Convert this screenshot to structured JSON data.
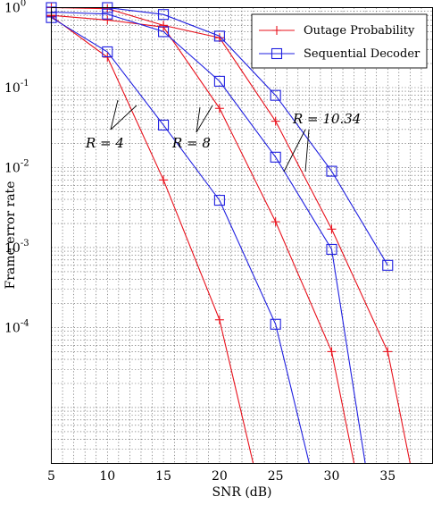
{
  "chart_data": {
    "type": "line",
    "xlabel": "SNR (dB)",
    "ylabel": "Frame error rate",
    "xlim": [
      5,
      39
    ],
    "ylim": [
      2e-06,
      1
    ],
    "yscale": "log",
    "grid": true,
    "legend_position": "top-right",
    "x_ticks": [
      5,
      10,
      15,
      20,
      25,
      30,
      35
    ],
    "y_ticks": [
      {
        "value": 1,
        "base": "10",
        "exp": "0"
      },
      {
        "value": 0.1,
        "base": "10",
        "exp": "-1"
      },
      {
        "value": 0.01,
        "base": "10",
        "exp": "-2"
      },
      {
        "value": 0.001,
        "base": "10",
        "exp": "-3"
      },
      {
        "value": 0.0001,
        "base": "10",
        "exp": "-4"
      }
    ],
    "legend": [
      {
        "label": "Outage Probability",
        "color": "#e8101b",
        "marker": "plus"
      },
      {
        "label": "Sequential Decoder",
        "color": "#1f1fe0",
        "marker": "square"
      }
    ],
    "series": [
      {
        "name": "Outage Probability",
        "group": "R=4",
        "color": "#e8101b",
        "marker": "plus",
        "x": [
          5,
          10,
          15,
          20,
          23
        ],
        "y": [
          0.78,
          0.24,
          0.007,
          0.000125,
          2e-06
        ]
      },
      {
        "name": "Outage Probability",
        "group": "R=8",
        "color": "#e8101b",
        "marker": "plus",
        "x": [
          5,
          10,
          15,
          20,
          25,
          30,
          32
        ],
        "y": [
          0.8,
          0.7,
          0.57,
          0.055,
          0.0021,
          5e-05,
          2e-06
        ]
      },
      {
        "name": "Outage Probability",
        "group": "R=10.34",
        "color": "#e8101b",
        "marker": "plus",
        "x": [
          5,
          10,
          15,
          20,
          25,
          30,
          35,
          37
        ],
        "y": [
          1,
          0.97,
          0.6,
          0.42,
          0.038,
          0.0017,
          5e-05,
          2e-06
        ]
      },
      {
        "name": "Sequential Decoder",
        "group": "R=4",
        "color": "#1f1fe0",
        "marker": "square",
        "x": [
          5,
          10,
          15,
          20,
          25,
          28
        ],
        "y": [
          0.75,
          0.28,
          0.034,
          0.0039,
          0.00011,
          2e-06
        ]
      },
      {
        "name": "Sequential Decoder",
        "group": "R=8",
        "color": "#1f1fe0",
        "marker": "square",
        "x": [
          5,
          10,
          15,
          20,
          25,
          30,
          33
        ],
        "y": [
          0.88,
          0.83,
          0.5,
          0.12,
          0.0135,
          0.00095,
          2e-06
        ]
      },
      {
        "name": "Sequential Decoder",
        "group": "R=10.34",
        "color": "#1f1fe0",
        "marker": "square",
        "x": [
          5,
          10,
          15,
          20,
          25,
          30,
          35
        ],
        "y": [
          1,
          1,
          0.82,
          0.44,
          0.08,
          0.009,
          0.0006
        ]
      }
    ],
    "annotations": [
      {
        "text": "R = 4"
      },
      {
        "text": "R = 8"
      },
      {
        "text": "R = 10.34"
      }
    ]
  }
}
